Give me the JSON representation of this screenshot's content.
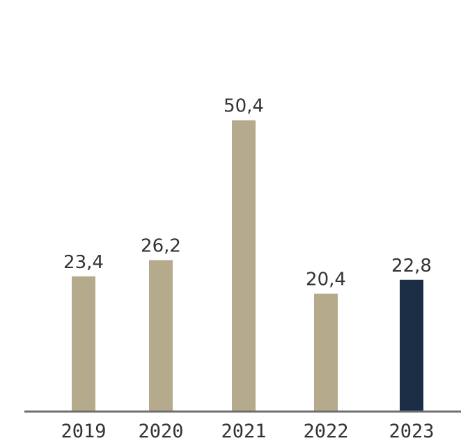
{
  "chart_data": {
    "type": "bar",
    "title": "",
    "xlabel": "",
    "ylabel": "",
    "ylim": [
      0,
      60
    ],
    "grid": false,
    "legend": "none",
    "categories": [
      "2019",
      "2020",
      "2021",
      "2022",
      "2023"
    ],
    "values": [
      23.4,
      26.2,
      50.4,
      20.4,
      22.8
    ],
    "value_labels": [
      "23,4",
      "26,2",
      "50,4",
      "20,4",
      "22,8"
    ],
    "bar_colors": [
      "#b5ab8c",
      "#b5ab8c",
      "#b5ab8c",
      "#b5ab8c",
      "#1b2d45"
    ]
  },
  "colors": {
    "bar": "#b5ab8c",
    "highlight": "#1b2d45",
    "axis": "#6e6e6e",
    "text": "#333333"
  }
}
